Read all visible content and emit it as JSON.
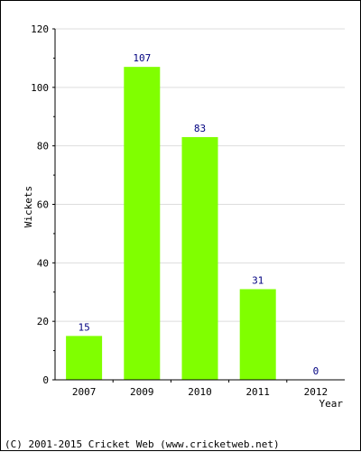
{
  "chart_data": {
    "type": "bar",
    "categories": [
      "2007",
      "2009",
      "2010",
      "2011",
      "2012"
    ],
    "values": [
      15,
      107,
      83,
      31,
      0
    ],
    "data_labels": [
      "15",
      "107",
      "83",
      "31",
      "0"
    ],
    "title": "",
    "xlabel": "Year",
    "ylabel": "Wickets",
    "ylim": [
      0,
      120
    ],
    "yticks": [
      0,
      20,
      40,
      60,
      80,
      100,
      120
    ],
    "ytick_labels": [
      "0",
      "20",
      "40",
      "60",
      "80",
      "100",
      "120"
    ],
    "grid": "horizontal",
    "bar_color": "#80ff00",
    "label_color": "#000080",
    "grid_color": "#dddddd"
  },
  "footer": {
    "copyright": "(C) 2001-2015 Cricket Web (www.cricketweb.net)"
  }
}
